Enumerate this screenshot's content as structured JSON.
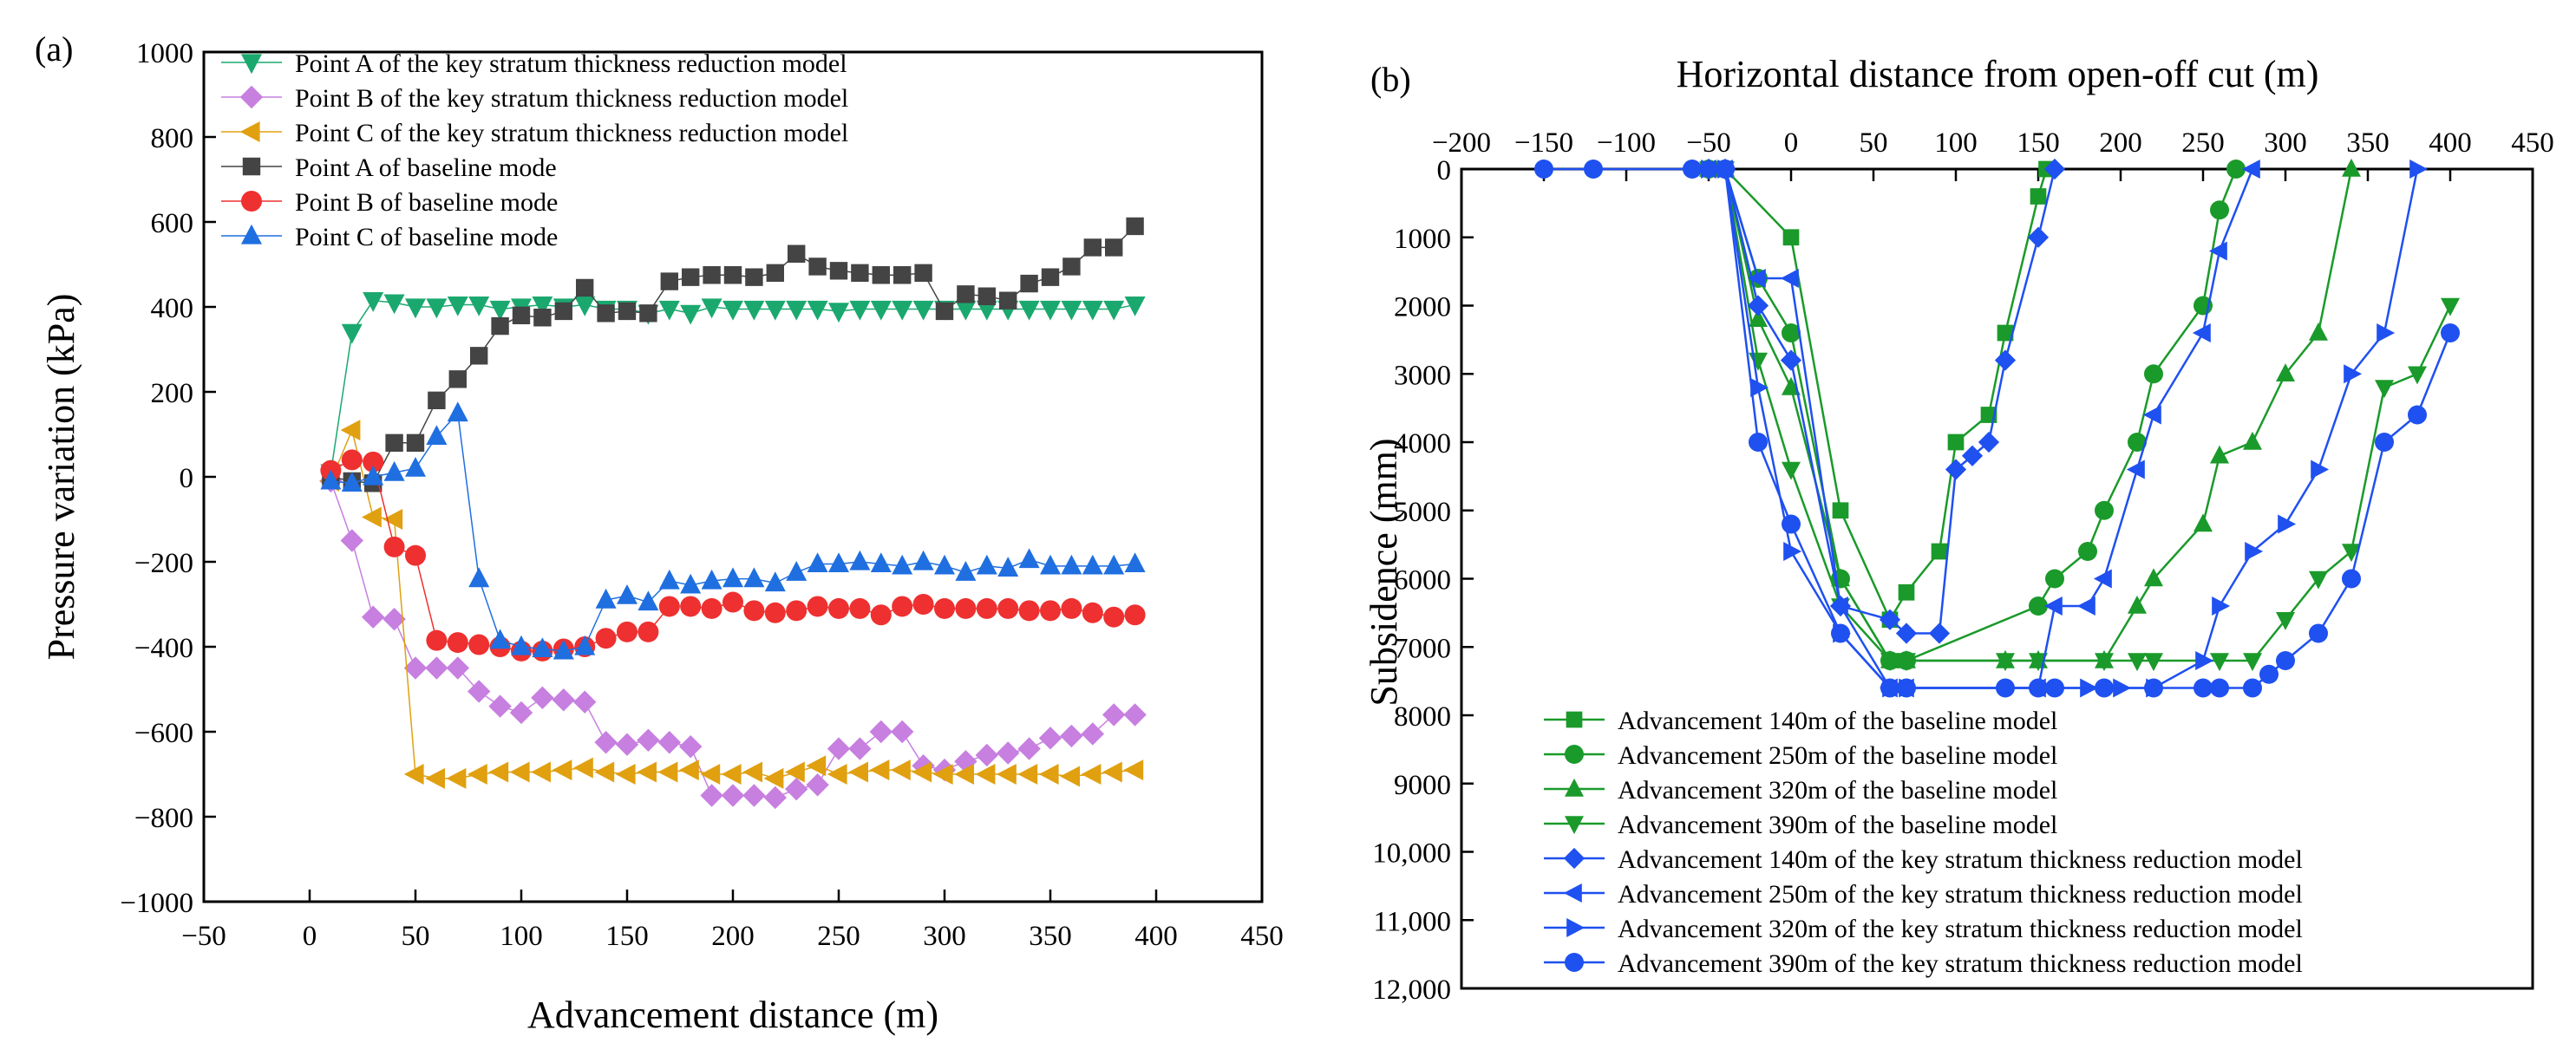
{
  "chart_data": [
    {
      "panel": "(a)",
      "type": "line",
      "title": "",
      "xlabel": "Advancement distance (m)",
      "ylabel": "Pressure variation (kPa)",
      "xlim": [
        -50,
        450
      ],
      "ylim": [
        -1000,
        1000
      ],
      "xticks": [
        -50,
        0,
        50,
        100,
        150,
        200,
        250,
        300,
        350,
        400,
        450
      ],
      "yticks": [
        -1000,
        -800,
        -600,
        -400,
        -200,
        0,
        200,
        400,
        600,
        800,
        1000
      ],
      "grid": false,
      "legend": "top-left",
      "series": [
        {
          "name": "Point A of the key stratum thickness reduction model",
          "color": "#1aa86f",
          "marker": "triangle-down",
          "x": [
            10,
            20,
            30,
            40,
            50,
            60,
            70,
            80,
            90,
            100,
            110,
            120,
            130,
            140,
            150,
            160,
            170,
            180,
            190,
            200,
            210,
            220,
            230,
            240,
            250,
            260,
            270,
            280,
            290,
            300,
            310,
            320,
            330,
            340,
            350,
            360,
            370,
            380,
            390
          ],
          "y": [
            10,
            340,
            415,
            410,
            400,
            400,
            405,
            405,
            395,
            400,
            405,
            400,
            405,
            395,
            395,
            385,
            395,
            385,
            400,
            395,
            395,
            395,
            395,
            395,
            390,
            395,
            395,
            395,
            395,
            395,
            395,
            395,
            395,
            395,
            395,
            395,
            395,
            395,
            405
          ]
        },
        {
          "name": "Point B of the key stratum thickness reduction model",
          "color": "#c77fe0",
          "marker": "diamond",
          "x": [
            10,
            20,
            30,
            40,
            50,
            60,
            70,
            80,
            90,
            100,
            110,
            120,
            130,
            140,
            150,
            160,
            170,
            180,
            190,
            200,
            210,
            220,
            230,
            240,
            250,
            260,
            270,
            280,
            290,
            300,
            310,
            320,
            330,
            340,
            350,
            360,
            370,
            380,
            390
          ],
          "y": [
            -10,
            -150,
            -330,
            -335,
            -450,
            -450,
            -450,
            -505,
            -540,
            -555,
            -520,
            -525,
            -530,
            -625,
            -630,
            -620,
            -625,
            -635,
            -750,
            -750,
            -750,
            -755,
            -735,
            -725,
            -640,
            -640,
            -600,
            -600,
            -680,
            -690,
            -670,
            -655,
            -650,
            -640,
            -615,
            -610,
            -605,
            -560,
            -560
          ]
        },
        {
          "name": "Point C of the key stratum thickness reduction model",
          "color": "#e0a010",
          "marker": "triangle-left",
          "x": [
            10,
            20,
            30,
            40,
            50,
            60,
            70,
            80,
            90,
            100,
            110,
            120,
            130,
            140,
            150,
            160,
            170,
            180,
            190,
            200,
            210,
            220,
            230,
            240,
            250,
            260,
            270,
            280,
            290,
            300,
            310,
            320,
            330,
            340,
            350,
            360,
            370,
            380,
            390
          ],
          "y": [
            -10,
            110,
            -95,
            -100,
            -700,
            -710,
            -710,
            -700,
            -695,
            -695,
            -695,
            -690,
            -685,
            -695,
            -700,
            -695,
            -695,
            -690,
            -700,
            -700,
            -695,
            -710,
            -695,
            -680,
            -700,
            -695,
            -690,
            -690,
            -695,
            -700,
            -700,
            -700,
            -700,
            -700,
            -700,
            -705,
            -700,
            -695,
            -690
          ]
        },
        {
          "name": "Point A of baseline mode",
          "color": "#444444",
          "marker": "square",
          "x": [
            10,
            20,
            30,
            40,
            50,
            60,
            70,
            80,
            90,
            100,
            110,
            120,
            130,
            140,
            150,
            160,
            170,
            180,
            190,
            200,
            210,
            220,
            230,
            240,
            250,
            260,
            270,
            280,
            290,
            300,
            310,
            320,
            330,
            340,
            350,
            360,
            370,
            380,
            390
          ],
          "y": [
            0,
            -10,
            -15,
            80,
            80,
            180,
            230,
            285,
            355,
            380,
            375,
            390,
            445,
            385,
            390,
            385,
            460,
            470,
            475,
            475,
            470,
            480,
            525,
            495,
            485,
            480,
            475,
            475,
            480,
            390,
            430,
            425,
            415,
            455,
            470,
            495,
            540,
            540,
            590
          ]
        },
        {
          "name": "Point B of baseline mode",
          "color": "#ee3030",
          "marker": "circle",
          "x": [
            10,
            20,
            30,
            40,
            50,
            60,
            70,
            80,
            90,
            100,
            110,
            120,
            130,
            140,
            150,
            160,
            170,
            180,
            190,
            200,
            210,
            220,
            230,
            240,
            250,
            260,
            270,
            280,
            290,
            300,
            310,
            320,
            330,
            340,
            350,
            360,
            370,
            380,
            390
          ],
          "y": [
            15,
            40,
            35,
            -165,
            -185,
            -385,
            -390,
            -395,
            -400,
            -410,
            -410,
            -405,
            -400,
            -380,
            -365,
            -365,
            -305,
            -305,
            -310,
            -295,
            -315,
            -320,
            -315,
            -305,
            -310,
            -310,
            -325,
            -305,
            -300,
            -310,
            -310,
            -310,
            -310,
            -315,
            -315,
            -310,
            -320,
            -330,
            -325
          ]
        },
        {
          "name": "Point C of baseline mode",
          "color": "#1f6fe0",
          "marker": "triangle-up",
          "x": [
            10,
            20,
            30,
            40,
            50,
            60,
            70,
            80,
            90,
            100,
            110,
            120,
            130,
            140,
            150,
            160,
            170,
            180,
            190,
            200,
            210,
            220,
            230,
            240,
            250,
            260,
            270,
            280,
            290,
            300,
            310,
            320,
            330,
            340,
            350,
            360,
            370,
            380,
            390
          ],
          "y": [
            -10,
            -15,
            0,
            10,
            20,
            95,
            150,
            -240,
            -385,
            -400,
            -405,
            -410,
            -400,
            -290,
            -280,
            -295,
            -245,
            -255,
            -245,
            -240,
            -240,
            -250,
            -225,
            -205,
            -205,
            -200,
            -205,
            -210,
            -200,
            -210,
            -225,
            -210,
            -215,
            -195,
            -210,
            -210,
            -210,
            -210,
            -205
          ]
        }
      ]
    },
    {
      "panel": "(b)",
      "type": "line",
      "title": "",
      "xlabel": "Horizontal distance from open-off cut (m)",
      "ylabel": "Subsidence (mm)",
      "xaxis_position": "top",
      "yaxis_inverted": true,
      "xlim": [
        -200,
        450
      ],
      "ylim": [
        0,
        12000
      ],
      "xticks": [
        -200,
        -150,
        -100,
        -50,
        0,
        50,
        100,
        150,
        200,
        250,
        300,
        350,
        400,
        450
      ],
      "yticks": [
        0,
        1000,
        2000,
        3000,
        4000,
        5000,
        6000,
        7000,
        8000,
        9000,
        10000,
        11000,
        12000
      ],
      "ytick_labels": [
        "0",
        "1000",
        "2000",
        "3000",
        "4000",
        "5000",
        "6000",
        "7000",
        "8000",
        "9000",
        "10,000",
        "11,000",
        "12,000"
      ],
      "grid": false,
      "legend": "bottom-left",
      "series": [
        {
          "name": "Advancement 140m of the baseline model",
          "color": "#1a9a2a",
          "marker": "square",
          "x": [
            -50,
            -40,
            0,
            30,
            60,
            70,
            90,
            100,
            120,
            130,
            150,
            155
          ],
          "y": [
            0,
            0,
            1000,
            5000,
            6600,
            6200,
            5600,
            4000,
            3600,
            2400,
            400,
            0
          ]
        },
        {
          "name": "Advancement 250m of the baseline model",
          "color": "#1a9a2a",
          "marker": "circle",
          "x": [
            -50,
            -40,
            -20,
            0,
            30,
            60,
            70,
            150,
            160,
            180,
            190,
            210,
            220,
            250,
            260,
            270
          ],
          "y": [
            0,
            0,
            1600,
            2400,
            6000,
            7200,
            7200,
            6400,
            6000,
            5600,
            5000,
            4000,
            3000,
            2000,
            600,
            0
          ]
        },
        {
          "name": "Advancement 320m of the baseline model",
          "color": "#1a9a2a",
          "marker": "triangle-up",
          "x": [
            -50,
            -40,
            -20,
            0,
            30,
            60,
            70,
            130,
            150,
            190,
            210,
            220,
            250,
            260,
            280,
            300,
            320,
            340
          ],
          "y": [
            0,
            0,
            2200,
            3200,
            6000,
            7200,
            7200,
            7200,
            7200,
            7200,
            6400,
            6000,
            5200,
            4200,
            4000,
            3000,
            2400,
            0
          ]
        },
        {
          "name": "Advancement 390m of the baseline model",
          "color": "#1a9a2a",
          "marker": "triangle-down",
          "x": [
            -50,
            -40,
            -20,
            0,
            30,
            60,
            70,
            130,
            150,
            190,
            210,
            220,
            260,
            280,
            300,
            320,
            340,
            360,
            380,
            400
          ],
          "y": [
            0,
            0,
            2800,
            4400,
            6400,
            7200,
            7200,
            7200,
            7200,
            7200,
            7200,
            7200,
            7200,
            7200,
            6600,
            6000,
            5600,
            3200,
            3000,
            2000
          ]
        },
        {
          "name": "Advancement 140m of the key stratum thickness reduction model",
          "color": "#1f50f0",
          "marker": "diamond",
          "x": [
            -50,
            -40,
            -20,
            0,
            30,
            60,
            70,
            90,
            100,
            110,
            120,
            130,
            150,
            160
          ],
          "y": [
            0,
            0,
            2000,
            2800,
            6400,
            6600,
            6800,
            6800,
            4400,
            4200,
            4000,
            2800,
            1000,
            0
          ]
        },
        {
          "name": "Advancement 250m of the key stratum thickness reduction model",
          "color": "#1f50f0",
          "marker": "triangle-left",
          "x": [
            -50,
            -40,
            -20,
            0,
            30,
            60,
            70,
            150,
            160,
            180,
            190,
            210,
            220,
            250,
            260,
            280
          ],
          "y": [
            0,
            0,
            1600,
            1600,
            6400,
            7600,
            7600,
            7600,
            6400,
            6400,
            6000,
            4400,
            3600,
            2400,
            1200,
            0
          ]
        },
        {
          "name": "Advancement 320m of the key stratum thickness reduction model",
          "color": "#1f50f0",
          "marker": "triangle-right",
          "x": [
            -50,
            -40,
            -20,
            0,
            30,
            60,
            70,
            180,
            200,
            220,
            250,
            260,
            280,
            300,
            320,
            340,
            360,
            380
          ],
          "y": [
            0,
            0,
            3200,
            5600,
            6800,
            7600,
            7600,
            7600,
            7600,
            7600,
            7200,
            6400,
            5600,
            5200,
            4400,
            3000,
            2400,
            0
          ]
        },
        {
          "name": "Advancement 390m of the key stratum thickness reduction model",
          "color": "#1f50f0",
          "marker": "circle",
          "x": [
            -150,
            -120,
            -60,
            -40,
            -20,
            0,
            30,
            60,
            70,
            130,
            150,
            160,
            190,
            220,
            250,
            260,
            280,
            290,
            300,
            320,
            340,
            360,
            380,
            400
          ],
          "y": [
            0,
            0,
            0,
            0,
            4000,
            5200,
            6800,
            7600,
            7600,
            7600,
            7600,
            7600,
            7600,
            7600,
            7600,
            7600,
            7600,
            7400,
            7200,
            6800,
            6000,
            4000,
            3600,
            2400
          ]
        }
      ]
    }
  ]
}
